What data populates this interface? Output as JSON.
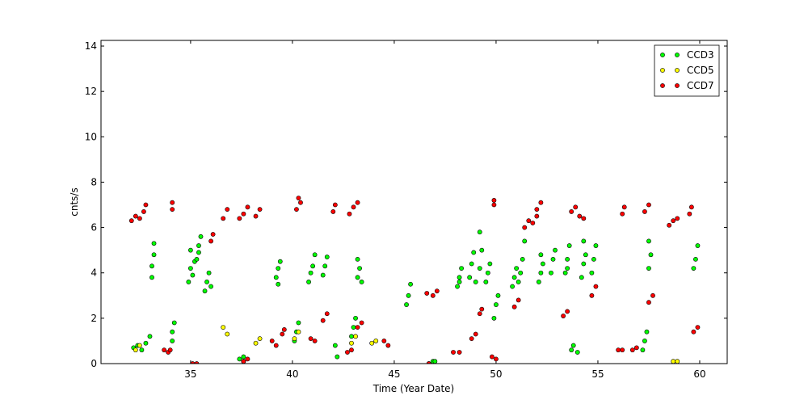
{
  "chart_data": {
    "type": "scatter",
    "xlabel": "Time (Year Date)",
    "ylabel": "cnts/s",
    "xlim": [
      30.6,
      61.35
    ],
    "ylim": [
      0,
      14.25
    ],
    "xticks": [
      35,
      40,
      45,
      50,
      55,
      60
    ],
    "yticks": [
      0,
      2,
      4,
      6,
      8,
      10,
      12,
      14
    ],
    "legend": "upper right",
    "series": [
      {
        "name": "CCD3",
        "color": "#00ff00",
        "x": [
          32.2,
          32.4,
          32.6,
          32.8,
          33.0,
          33.1,
          33.1,
          33.2,
          33.2,
          34.1,
          34.1,
          34.2,
          34.9,
          35.0,
          35.1,
          35.2,
          35.0,
          35.3,
          35.4,
          35.5,
          35.4,
          35.7,
          35.8,
          35.9,
          36.0,
          37.4,
          37.6,
          39.2,
          39.3,
          39.4,
          39.3,
          40.1,
          40.2,
          40.3,
          40.8,
          40.9,
          41.0,
          41.1,
          41.5,
          41.6,
          41.7,
          42.1,
          42.2,
          42.9,
          43.0,
          43.1,
          43.2,
          43.3,
          43.2,
          43.4,
          45.6,
          45.7,
          45.8,
          46.7,
          46.9,
          47.0,
          48.1,
          48.2,
          48.3,
          48.2,
          48.7,
          48.8,
          48.9,
          49.0,
          49.2,
          49.3,
          49.2,
          49.5,
          49.6,
          49.7,
          49.9,
          50.0,
          50.1,
          50.8,
          50.9,
          51.0,
          51.1,
          51.2,
          51.3,
          51.4,
          52.1,
          52.2,
          52.3,
          52.2,
          52.7,
          52.8,
          52.9,
          53.4,
          53.5,
          53.6,
          53.5,
          53.7,
          53.8,
          54.0,
          54.2,
          54.3,
          54.4,
          54.3,
          54.7,
          54.8,
          54.9,
          57.2,
          57.3,
          57.4,
          57.5,
          57.6,
          57.5,
          59.7,
          59.8,
          59.9
        ],
        "values": [
          0.7,
          0.8,
          0.6,
          0.9,
          1.2,
          3.8,
          4.3,
          4.8,
          5.3,
          1.0,
          1.4,
          1.8,
          3.6,
          4.2,
          3.9,
          4.5,
          5.0,
          4.6,
          5.2,
          5.6,
          4.9,
          3.2,
          3.6,
          4.0,
          3.4,
          0.2,
          0.3,
          3.8,
          4.2,
          4.5,
          3.5,
          1.0,
          1.4,
          1.8,
          3.6,
          4.0,
          4.3,
          4.8,
          3.9,
          4.3,
          4.7,
          0.8,
          0.3,
          1.2,
          1.6,
          2.0,
          3.8,
          4.2,
          4.6,
          3.6,
          2.6,
          3.0,
          3.5,
          0.0,
          0.1,
          0.1,
          3.4,
          3.8,
          4.2,
          3.6,
          3.8,
          4.4,
          4.9,
          3.6,
          4.2,
          5.0,
          5.8,
          3.6,
          4.0,
          4.4,
          2.0,
          2.6,
          3.0,
          3.4,
          3.8,
          4.2,
          3.6,
          4.0,
          4.6,
          5.4,
          3.6,
          4.0,
          4.4,
          4.8,
          4.0,
          4.6,
          5.0,
          4.0,
          4.6,
          5.2,
          4.2,
          0.6,
          0.8,
          0.5,
          3.8,
          4.4,
          4.8,
          5.4,
          4.0,
          4.6,
          5.2,
          0.6,
          1.0,
          1.4,
          4.2,
          4.8,
          5.4,
          4.2,
          4.6,
          5.2
        ]
      },
      {
        "name": "CCD5",
        "color": "#ffff00",
        "x": [
          32.3,
          32.5,
          36.6,
          36.8,
          37.6,
          38.2,
          38.4,
          40.1,
          40.3,
          42.9,
          43.1,
          43.9,
          44.1,
          58.7,
          58.9
        ],
        "values": [
          0.6,
          0.8,
          1.6,
          1.3,
          0.1,
          0.9,
          1.1,
          1.1,
          1.4,
          0.9,
          1.2,
          0.9,
          1.0,
          0.1,
          0.1
        ]
      },
      {
        "name": "CCD7",
        "color": "#ff0000",
        "x": [
          32.1,
          32.3,
          32.5,
          32.7,
          32.8,
          33.7,
          33.9,
          34.0,
          34.1,
          34.1,
          35.1,
          35.3,
          36.0,
          36.1,
          36.6,
          36.8,
          37.4,
          37.6,
          37.8,
          37.6,
          37.8,
          38.2,
          38.4,
          39.0,
          39.2,
          39.5,
          39.6,
          40.2,
          40.4,
          40.3,
          40.9,
          41.1,
          41.5,
          41.7,
          42.0,
          42.1,
          42.7,
          42.9,
          42.8,
          43.0,
          43.2,
          43.2,
          43.4,
          44.5,
          44.7,
          46.6,
          46.9,
          47.1,
          46.7,
          47.9,
          48.2,
          48.8,
          49.0,
          49.2,
          49.3,
          49.8,
          50.0,
          49.9,
          49.9,
          50.9,
          51.1,
          51.4,
          51.6,
          51.8,
          52.0,
          52.0,
          52.2,
          53.3,
          53.5,
          53.7,
          53.9,
          54.1,
          54.3,
          54.7,
          54.9,
          56.0,
          56.2,
          56.2,
          56.3,
          56.7,
          56.9,
          57.3,
          57.5,
          57.5,
          57.7,
          58.5,
          58.7,
          58.9,
          59.5,
          59.6,
          59.7,
          59.9
        ],
        "values": [
          6.3,
          6.5,
          6.4,
          6.7,
          7.0,
          0.6,
          0.5,
          0.6,
          6.8,
          7.1,
          0.0,
          0.0,
          5.4,
          5.7,
          6.4,
          6.8,
          6.4,
          6.6,
          6.9,
          0.1,
          0.2,
          6.5,
          6.8,
          1.0,
          0.8,
          1.3,
          1.5,
          6.8,
          7.1,
          7.3,
          1.1,
          1.0,
          1.9,
          2.2,
          6.7,
          7.0,
          0.5,
          0.6,
          6.6,
          6.9,
          7.1,
          1.6,
          1.8,
          1.0,
          0.8,
          3.1,
          3.0,
          3.2,
          0.0,
          0.5,
          0.5,
          1.1,
          1.3,
          2.2,
          2.4,
          0.3,
          0.2,
          7.0,
          7.2,
          2.5,
          2.8,
          6.0,
          6.3,
          6.2,
          6.5,
          6.8,
          7.1,
          2.1,
          2.3,
          6.7,
          6.9,
          6.5,
          6.4,
          3.0,
          3.4,
          0.6,
          0.6,
          6.6,
          6.9,
          0.6,
          0.7,
          6.7,
          7.0,
          2.7,
          3.0,
          6.1,
          6.3,
          6.4,
          6.6,
          6.9,
          1.4,
          1.6
        ]
      }
    ]
  }
}
